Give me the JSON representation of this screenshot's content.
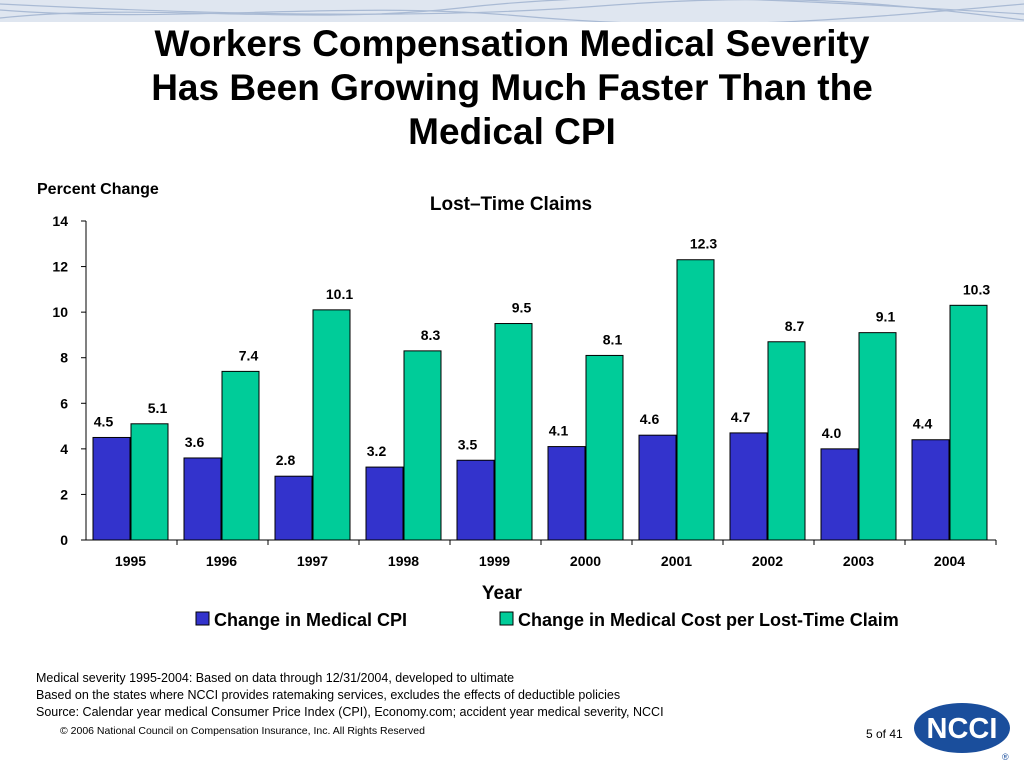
{
  "slide": {
    "title": "Workers Compensation Medical Severity\nHas Been Growing Much Faster Than the\nMedical CPI",
    "footnotes": [
      "Medical severity 1995-2004: Based on data through 12/31/2004, developed to ultimate",
      "Based on the states where NCCI provides ratemaking services, excludes the effects of deductible policies",
      "Source: Calendar year medical Consumer Price Index (CPI), Economy.com; accident year medical severity, NCCI"
    ],
    "copyright": "© 2006 National Council on Compensation Insurance, Inc. All Rights Reserved",
    "page_number": "5 of 41",
    "logo_text": "NCCI",
    "logo_mark": "®"
  },
  "colors": {
    "cpi": "#3333CC",
    "claim": "#00CC99",
    "logo": "#1a4e9c",
    "band": "#c8d4e6"
  },
  "chart_data": {
    "type": "bar",
    "title": "Lost–Time Claims",
    "xlabel": "Year",
    "ylabel": "Percent Change",
    "categories": [
      "1995",
      "1996",
      "1997",
      "1998",
      "1999",
      "2000",
      "2001",
      "2002",
      "2003",
      "2004"
    ],
    "series": [
      {
        "name": "Change in Medical CPI",
        "values": [
          4.5,
          3.6,
          2.8,
          3.2,
          3.5,
          4.1,
          4.6,
          4.7,
          4.0,
          4.4
        ]
      },
      {
        "name": "Change in Medical Cost per Lost-Time Claim",
        "values": [
          5.1,
          7.4,
          10.1,
          8.3,
          9.5,
          8.1,
          12.3,
          8.7,
          9.1,
          10.3
        ]
      }
    ],
    "ylim": [
      0,
      14
    ],
    "yticks": [
      0,
      2,
      4,
      6,
      8,
      10,
      12,
      14
    ],
    "grid": false,
    "legend": "bottom"
  }
}
